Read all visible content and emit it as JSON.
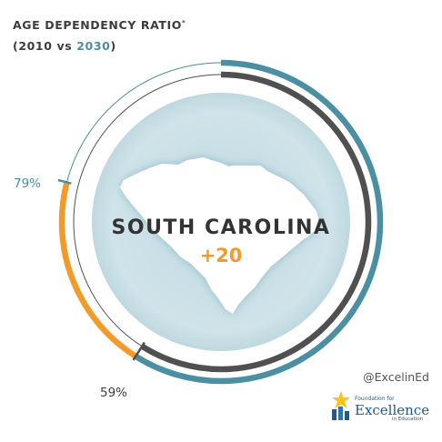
{
  "header": {
    "title": "AGE DEPENDENCY RATIO",
    "title_mark": "*",
    "subtitle_open": "(",
    "subtitle_year1": "2010",
    "subtitle_vs": " vs ",
    "subtitle_year2": "2030",
    "subtitle_close": ")"
  },
  "chart_data": {
    "type": "radial-bar",
    "state": "SOUTH CAROLINA",
    "change_label": "+20",
    "series": [
      {
        "year": "2010",
        "value": 59,
        "label": "59%"
      },
      {
        "year": "2030",
        "value": 79,
        "label": "79%"
      }
    ],
    "range": [
      0,
      100
    ],
    "colors": {
      "2010": "#505050",
      "2030": "#4a8fa3",
      "increase": "#f29b2a",
      "map_fill": "#c9dfe5"
    }
  },
  "footer": {
    "handle": "@ExcelinEd",
    "logo_small": "Foundation for",
    "logo_big": "Excellence",
    "logo_tag": "in Education"
  }
}
